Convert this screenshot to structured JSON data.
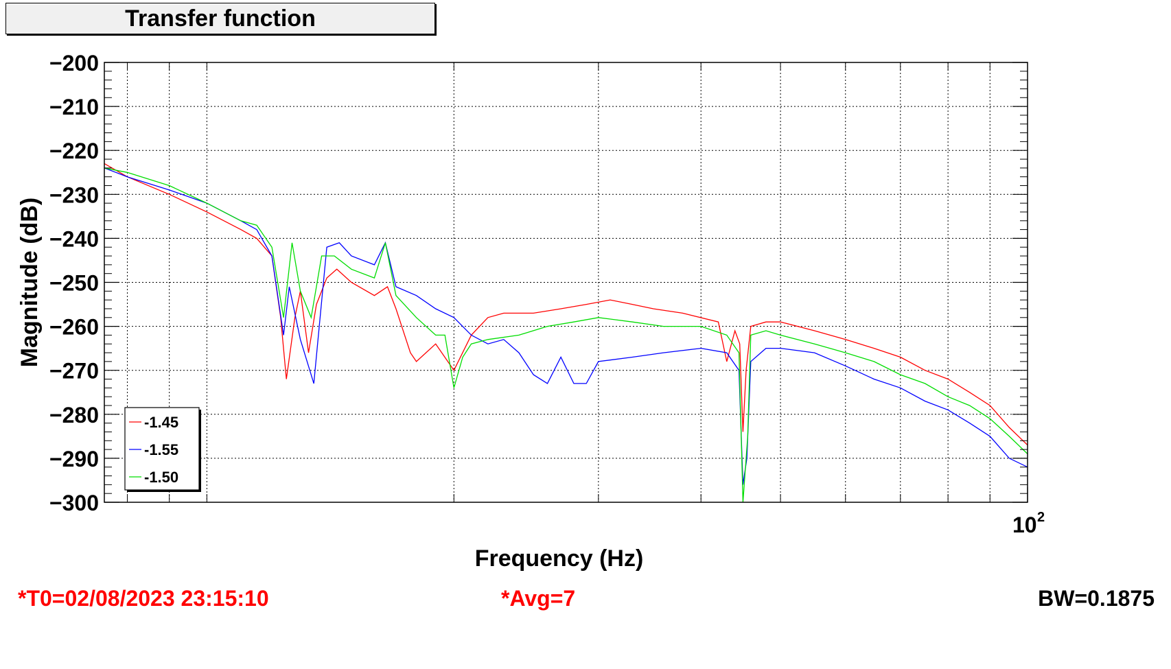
{
  "title": "Transfer function",
  "footer": {
    "t0": "*T0=02/08/2023 23:15:10",
    "avg": "*Avg=7",
    "bw": "BW=0.1875"
  },
  "chart_data": {
    "type": "line",
    "title": "Transfer function",
    "xlabel": "Frequency (Hz)",
    "ylabel": "Magnitude (dB)",
    "x_scale": "log",
    "xlim": [
      7.5,
      100
    ],
    "ylim": [
      -300,
      -200
    ],
    "y_ticks": [
      -200,
      -210,
      -220,
      -230,
      -240,
      -250,
      -260,
      -270,
      -280,
      -290,
      -300
    ],
    "y_tick_labels": [
      "−200",
      "−210",
      "−220",
      "−230",
      "−240",
      "−250",
      "−260",
      "−270",
      "−280",
      "−290",
      "−300"
    ],
    "x_tick_label": {
      "base": "10",
      "exponent": "2"
    },
    "grid": true,
    "legend_position": "bottom-left",
    "series": [
      {
        "name": "-1.45",
        "color": "#ff0000",
        "points": [
          [
            7.5,
            -223
          ],
          [
            8,
            -226
          ],
          [
            9,
            -230
          ],
          [
            10,
            -234
          ],
          [
            11,
            -238
          ],
          [
            11.5,
            -240
          ],
          [
            12,
            -244
          ],
          [
            12.3,
            -258
          ],
          [
            12.5,
            -272
          ],
          [
            12.8,
            -258
          ],
          [
            13,
            -252
          ],
          [
            13.3,
            -266
          ],
          [
            13.6,
            -255
          ],
          [
            14,
            -249
          ],
          [
            14.4,
            -247
          ],
          [
            15,
            -250
          ],
          [
            16,
            -253
          ],
          [
            16.6,
            -251
          ],
          [
            17,
            -256
          ],
          [
            17.7,
            -266
          ],
          [
            18,
            -268
          ],
          [
            19,
            -264
          ],
          [
            20,
            -270
          ],
          [
            21,
            -262
          ],
          [
            22,
            -258
          ],
          [
            23,
            -257
          ],
          [
            24,
            -257
          ],
          [
            25,
            -257
          ],
          [
            27,
            -256
          ],
          [
            29,
            -255
          ],
          [
            31,
            -254
          ],
          [
            33,
            -255
          ],
          [
            35,
            -256
          ],
          [
            38,
            -257
          ],
          [
            42,
            -259
          ],
          [
            43,
            -268
          ],
          [
            44,
            -261
          ],
          [
            44.6,
            -264
          ],
          [
            45,
            -284
          ],
          [
            45.4,
            -270
          ],
          [
            46,
            -260
          ],
          [
            48,
            -259
          ],
          [
            50,
            -259
          ],
          [
            55,
            -261
          ],
          [
            60,
            -263
          ],
          [
            65,
            -265
          ],
          [
            70,
            -267
          ],
          [
            75,
            -270
          ],
          [
            80,
            -272
          ],
          [
            85,
            -275
          ],
          [
            90,
            -278
          ],
          [
            95,
            -283
          ],
          [
            100,
            -287
          ]
        ]
      },
      {
        "name": "-1.55",
        "color": "#0000ff",
        "points": [
          [
            7.5,
            -224
          ],
          [
            8,
            -226
          ],
          [
            9,
            -229
          ],
          [
            10,
            -232
          ],
          [
            11,
            -236
          ],
          [
            11.5,
            -238
          ],
          [
            12,
            -244
          ],
          [
            12.4,
            -262
          ],
          [
            12.6,
            -251
          ],
          [
            13,
            -263
          ],
          [
            13.5,
            -273
          ],
          [
            14,
            -242
          ],
          [
            14.5,
            -241
          ],
          [
            15,
            -244
          ],
          [
            16,
            -246
          ],
          [
            16.5,
            -241
          ],
          [
            17,
            -251
          ],
          [
            18,
            -253
          ],
          [
            19,
            -256
          ],
          [
            20,
            -258
          ],
          [
            21,
            -262
          ],
          [
            22,
            -264
          ],
          [
            23,
            -263
          ],
          [
            24,
            -266
          ],
          [
            25,
            -271
          ],
          [
            26,
            -273
          ],
          [
            27,
            -267
          ],
          [
            28,
            -273
          ],
          [
            29,
            -273
          ],
          [
            30,
            -268
          ],
          [
            33,
            -267
          ],
          [
            36,
            -266
          ],
          [
            40,
            -265
          ],
          [
            43,
            -266
          ],
          [
            44.5,
            -270
          ],
          [
            45,
            -296
          ],
          [
            45.5,
            -290
          ],
          [
            46,
            -268
          ],
          [
            48,
            -265
          ],
          [
            50,
            -265
          ],
          [
            55,
            -266
          ],
          [
            60,
            -269
          ],
          [
            65,
            -272
          ],
          [
            70,
            -274
          ],
          [
            75,
            -277
          ],
          [
            80,
            -279
          ],
          [
            85,
            -282
          ],
          [
            90,
            -285
          ],
          [
            95,
            -290
          ],
          [
            100,
            -292
          ]
        ]
      },
      {
        "name": "-1.50",
        "color": "#00dd00",
        "points": [
          [
            7.5,
            -224
          ],
          [
            8,
            -225
          ],
          [
            9,
            -228
          ],
          [
            10,
            -232
          ],
          [
            11,
            -236
          ],
          [
            11.5,
            -237
          ],
          [
            12,
            -242
          ],
          [
            12.4,
            -258
          ],
          [
            12.7,
            -241
          ],
          [
            13,
            -252
          ],
          [
            13.4,
            -258
          ],
          [
            13.8,
            -244
          ],
          [
            14.3,
            -244
          ],
          [
            15,
            -247
          ],
          [
            16,
            -249
          ],
          [
            16.5,
            -241
          ],
          [
            17,
            -253
          ],
          [
            18,
            -258
          ],
          [
            19,
            -262
          ],
          [
            19.5,
            -262
          ],
          [
            20,
            -274
          ],
          [
            20.5,
            -267
          ],
          [
            21,
            -264
          ],
          [
            22,
            -263
          ],
          [
            24,
            -262
          ],
          [
            26,
            -260
          ],
          [
            28,
            -259
          ],
          [
            30,
            -258
          ],
          [
            33,
            -259
          ],
          [
            36,
            -260
          ],
          [
            40,
            -260
          ],
          [
            43,
            -262
          ],
          [
            44.5,
            -266
          ],
          [
            45,
            -300
          ],
          [
            45.6,
            -285
          ],
          [
            46,
            -262
          ],
          [
            48,
            -261
          ],
          [
            50,
            -262
          ],
          [
            55,
            -264
          ],
          [
            60,
            -266
          ],
          [
            65,
            -268
          ],
          [
            70,
            -271
          ],
          [
            75,
            -273
          ],
          [
            80,
            -276
          ],
          [
            85,
            -278
          ],
          [
            90,
            -281
          ],
          [
            95,
            -285
          ],
          [
            100,
            -289
          ]
        ]
      }
    ]
  }
}
